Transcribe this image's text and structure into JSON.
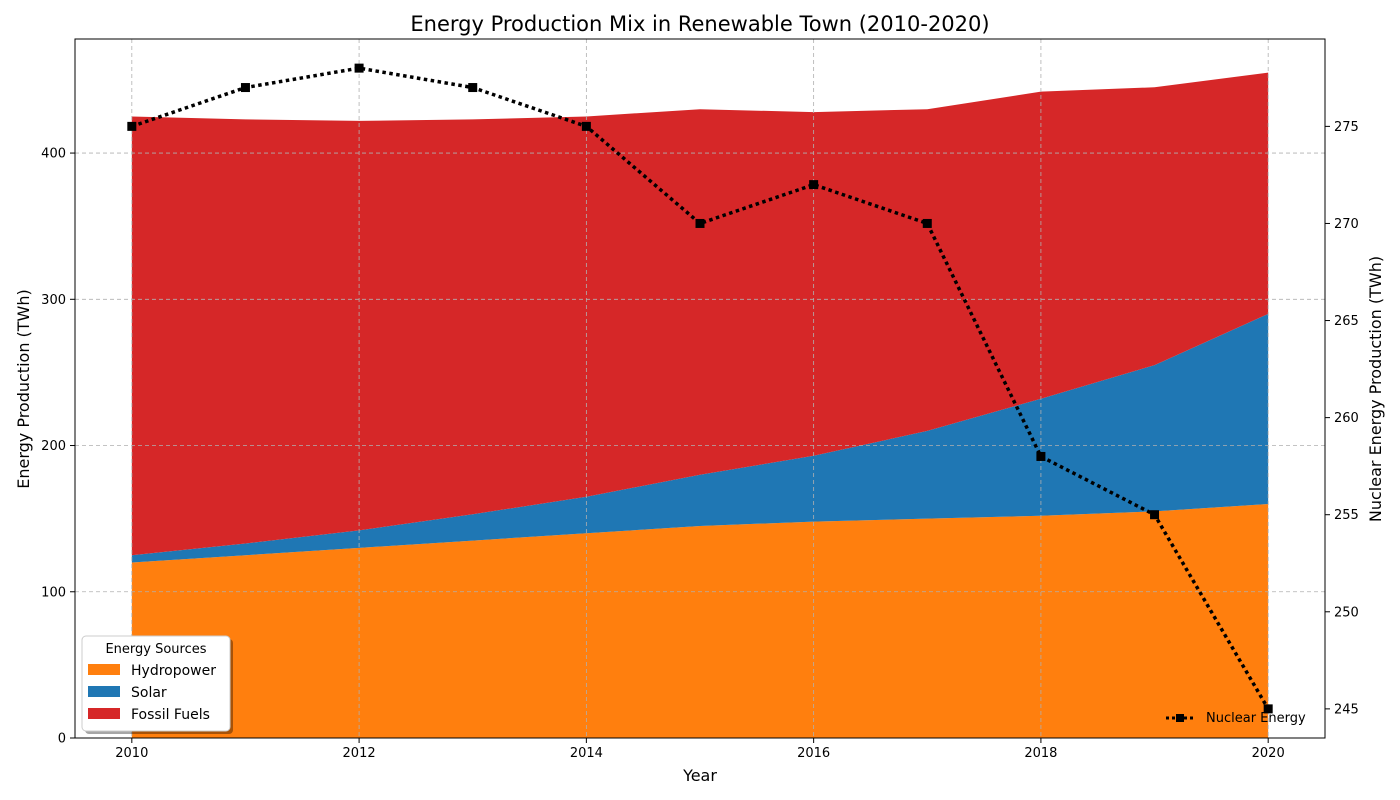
{
  "chart_data": {
    "type": "area",
    "stacked": true,
    "title": "Energy Production Mix in Renewable Town (2010-2020)",
    "xlabel": "Year",
    "ylabel": "Energy Production (TWh)",
    "y2label": "Nuclear Energy Production (TWh)",
    "x": [
      2010,
      2011,
      2012,
      2013,
      2014,
      2015,
      2016,
      2017,
      2018,
      2019,
      2020
    ],
    "xlim": [
      2009.5,
      2020.5
    ],
    "ylim": [
      0,
      478
    ],
    "y2lim": [
      243.5,
      279.5
    ],
    "xticks": [
      2010,
      2012,
      2014,
      2016,
      2018,
      2020
    ],
    "yticks": [
      0,
      100,
      200,
      300,
      400
    ],
    "y2ticks": [
      245,
      250,
      255,
      260,
      265,
      270,
      275
    ],
    "grid": true,
    "series": [
      {
        "name": "Hydropower",
        "color": "#ff7f0e",
        "values": [
          120,
          125,
          130,
          135,
          140,
          145,
          148,
          150,
          152,
          155,
          160
        ]
      },
      {
        "name": "Solar",
        "color": "#1f77b4",
        "values": [
          5,
          8,
          12,
          18,
          25,
          35,
          45,
          60,
          80,
          100,
          130
        ]
      },
      {
        "name": "Fossil Fuels",
        "color": "#d62728",
        "values": [
          300,
          290,
          280,
          270,
          260,
          250,
          235,
          220,
          210,
          190,
          165
        ]
      }
    ],
    "secondary_series": {
      "name": "Nuclear Energy",
      "axis": "right",
      "style": "dotted",
      "marker": "square",
      "color": "#000000",
      "values": [
        275,
        277,
        278,
        277,
        275,
        270,
        272,
        270,
        258,
        255,
        245
      ]
    },
    "legend": {
      "title": "Energy Sources",
      "position": "lower-left"
    },
    "legend2": {
      "position": "lower-right"
    }
  }
}
